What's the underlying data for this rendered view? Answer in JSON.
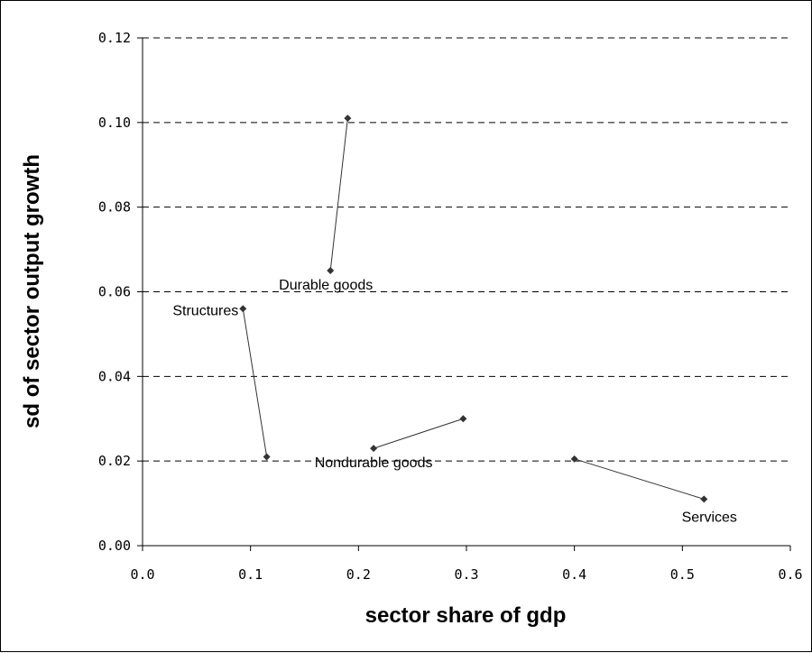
{
  "chart_data": {
    "type": "scatter",
    "title": "",
    "xlabel": "sector share of gdp",
    "ylabel": "sd of sector output growth",
    "xlim": [
      0.0,
      0.6
    ],
    "ylim": [
      0.0,
      0.12
    ],
    "x_ticks": [
      "0.0",
      "0.1",
      "0.2",
      "0.3",
      "0.4",
      "0.5",
      "0.6"
    ],
    "y_ticks": [
      "0.00",
      "0.02",
      "0.04",
      "0.06",
      "0.08",
      "0.10",
      "0.12"
    ],
    "grid": "horizontal dashed",
    "series": [
      {
        "name": "Durable goods",
        "points": [
          [
            0.19,
            0.101
          ],
          [
            0.174,
            0.065
          ]
        ],
        "label_at": "end"
      },
      {
        "name": "Structures",
        "points": [
          [
            0.115,
            0.021
          ],
          [
            0.093,
            0.056
          ]
        ],
        "label_at": "end"
      },
      {
        "name": "Nondurable goods",
        "points": [
          [
            0.297,
            0.03
          ],
          [
            0.214,
            0.023
          ]
        ],
        "label_at": "end"
      },
      {
        "name": "Services",
        "points": [
          [
            0.4,
            0.0205
          ],
          [
            0.52,
            0.011
          ]
        ],
        "label_at": "end"
      }
    ],
    "colors": {
      "marker": "#333333",
      "line": "#333333",
      "grid": "#000000"
    }
  }
}
